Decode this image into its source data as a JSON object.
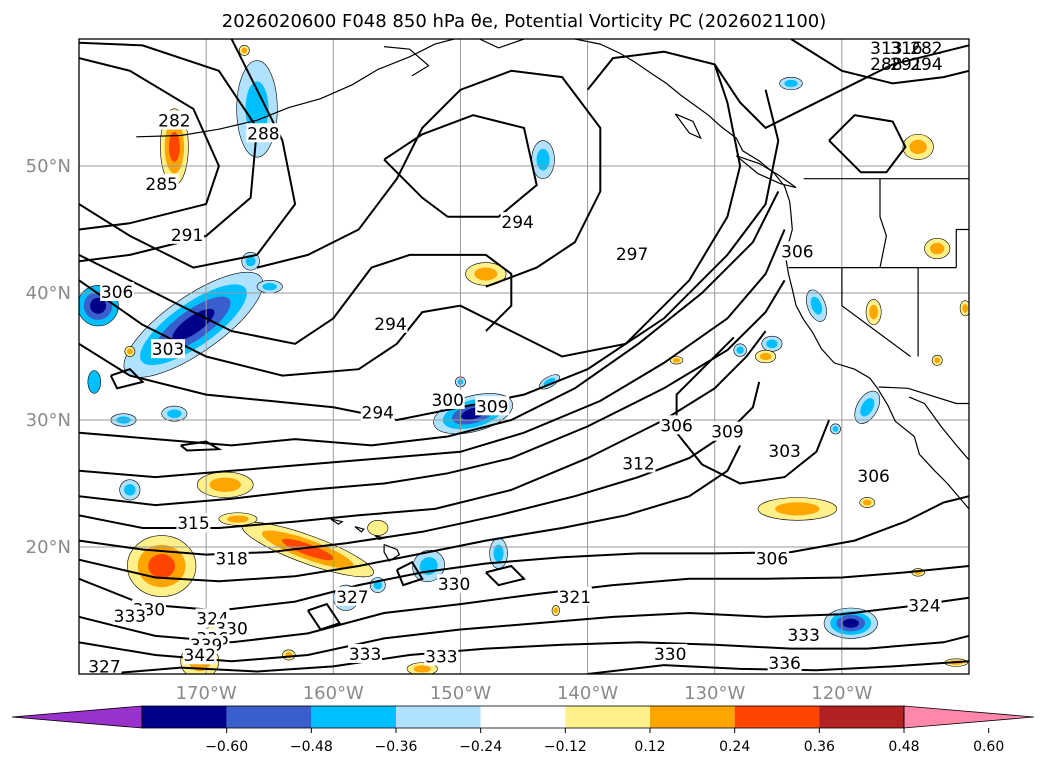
{
  "chart_data": {
    "type": "contour-map",
    "title": "2026020600 F048 850 hPa $\\theta_e$, Potential Vorticity PC (2026021100)",
    "title_display": "2026020600 F048 850 hPa θe, Potential Vorticity PC (2026021100)",
    "lon_range": [
      -180,
      -110
    ],
    "lat_range": [
      10,
      60
    ],
    "grid": true,
    "lat_ticks": [
      {
        "value": 20,
        "label": "20°N"
      },
      {
        "value": 30,
        "label": "30°N"
      },
      {
        "value": 40,
        "label": "40°N"
      },
      {
        "value": 50,
        "label": "50°N"
      }
    ],
    "lon_ticks": [
      {
        "value": -170,
        "label": "170°W"
      },
      {
        "value": -160,
        "label": "160°W"
      },
      {
        "value": -150,
        "label": "150°W"
      },
      {
        "value": -140,
        "label": "140°W"
      },
      {
        "value": -130,
        "label": "130°W"
      },
      {
        "value": -120,
        "label": "120°W"
      }
    ],
    "colorbar": {
      "orientation": "horizontal",
      "extend": "both",
      "ticks": [
        "−0.60",
        "−0.48",
        "−0.36",
        "−0.24",
        "−0.12",
        "0.12",
        "0.24",
        "0.36",
        "0.48",
        "0.60"
      ],
      "colors": [
        "#9932cc",
        "#00008b",
        "#3a5fcd",
        "#00bfff",
        "#b0e2ff",
        "#ffffff",
        "#fff08a",
        "#ffa500",
        "#ff4500",
        "#b22222",
        "#ff88aa"
      ]
    },
    "theta_e_contour_labels": [
      {
        "text": "282",
        "lon": -172.5,
        "lat": 53.5
      },
      {
        "text": "285",
        "lon": -173.5,
        "lat": 48.5
      },
      {
        "text": "288",
        "lon": -165.5,
        "lat": 52.5
      },
      {
        "text": "291",
        "lon": -171.5,
        "lat": 44.5
      },
      {
        "text": "294",
        "lon": -145.5,
        "lat": 45.5
      },
      {
        "text": "294",
        "lon": -155.5,
        "lat": 37.5
      },
      {
        "text": "294",
        "lon": -156.5,
        "lat": 30.5
      },
      {
        "text": "297",
        "lon": -136.5,
        "lat": 43
      },
      {
        "text": "300",
        "lon": -151,
        "lat": 31.5
      },
      {
        "text": "303",
        "lon": -173,
        "lat": 35.5
      },
      {
        "text": "303",
        "lon": -124.5,
        "lat": 27.5
      },
      {
        "text": "306",
        "lon": -177,
        "lat": 40
      },
      {
        "text": "306",
        "lon": -123.5,
        "lat": 43.2
      },
      {
        "text": "306",
        "lon": -133,
        "lat": 29.5
      },
      {
        "text": "306",
        "lon": -117.5,
        "lat": 25.5
      },
      {
        "text": "306",
        "lon": -125.5,
        "lat": 19
      },
      {
        "text": "309",
        "lon": -147.5,
        "lat": 31
      },
      {
        "text": "309",
        "lon": -129,
        "lat": 29
      },
      {
        "text": "312",
        "lon": -136,
        "lat": 26.5
      },
      {
        "text": "315",
        "lon": -171,
        "lat": 21.8
      },
      {
        "text": "318",
        "lon": -168,
        "lat": 19
      },
      {
        "text": "321",
        "lon": -141,
        "lat": 16
      },
      {
        "text": "324",
        "lon": -113.5,
        "lat": 15.3
      },
      {
        "text": "324",
        "lon": -169.5,
        "lat": 14.3
      },
      {
        "text": "327",
        "lon": -158.5,
        "lat": 16
      },
      {
        "text": "327",
        "lon": -178,
        "lat": 10.5
      },
      {
        "text": "330",
        "lon": -150.5,
        "lat": 17
      },
      {
        "text": "330",
        "lon": -174.5,
        "lat": 15
      },
      {
        "text": "330",
        "lon": -168,
        "lat": 13.5
      },
      {
        "text": "330",
        "lon": -133.5,
        "lat": 11.5
      },
      {
        "text": "333",
        "lon": -176,
        "lat": 14.5
      },
      {
        "text": "333",
        "lon": -157.5,
        "lat": 11.5
      },
      {
        "text": "333",
        "lon": -151.5,
        "lat": 11.3
      },
      {
        "text": "333",
        "lon": -123,
        "lat": 13
      },
      {
        "text": "336",
        "lon": -169.5,
        "lat": 12.7
      },
      {
        "text": "336",
        "lon": -124.5,
        "lat": 10.8
      },
      {
        "text": "339",
        "lon": -170,
        "lat": 12.2
      },
      {
        "text": "342",
        "lon": -170.5,
        "lat": 11.4
      }
    ],
    "top_right_clustered_labels": [
      "313",
      "316",
      "282",
      "288",
      "291",
      "294"
    ]
  }
}
